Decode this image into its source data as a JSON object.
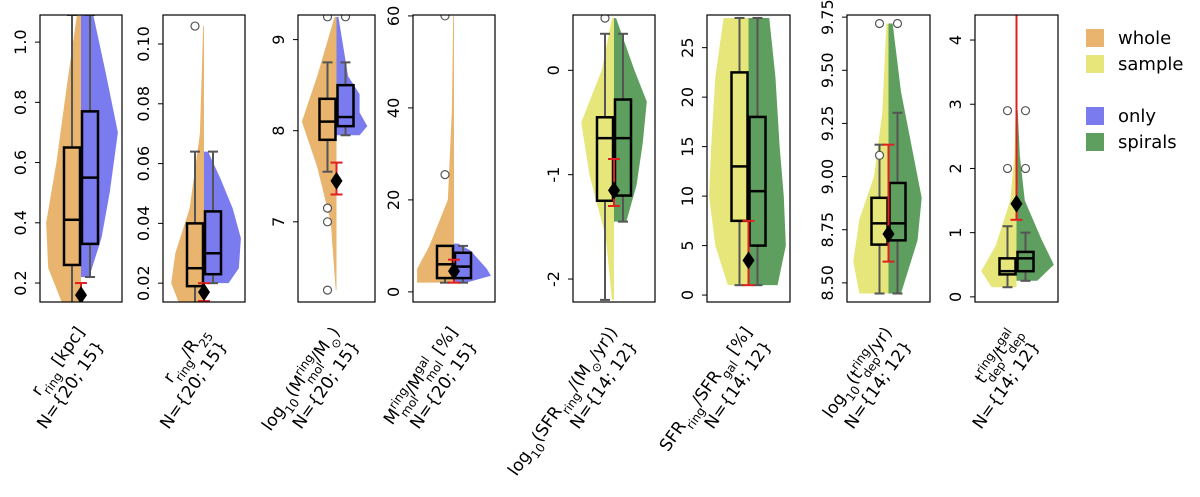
{
  "legend": [
    {
      "label": "whole",
      "color": "#e8b46e"
    },
    {
      "label": "sample",
      "color": "#e6e67a"
    },
    {
      "label": "only",
      "color": "#7b7bf0"
    },
    {
      "label": "spirals",
      "color": "#5e9e5e"
    }
  ],
  "chart_data": [
    {
      "type": "split-violin",
      "ylim": [
        0.137,
        1.09
      ],
      "yticks": [
        0.2,
        0.4,
        0.6,
        0.8,
        {
          "value": 1,
          "label": "1.0"
        }
      ],
      "xlabel": [
        {
          "text": "r"
        },
        {
          "text": "ring",
          "shift": "sub"
        },
        {
          "text": " [kpc]"
        }
      ],
      "n_label": "N={20; 15}",
      "series": [
        {
          "color": "#e8b46e",
          "box": {
            "whislo": 0.13,
            "q1": 0.26,
            "med": 0.41,
            "q3": 0.65,
            "whishi": 1.09
          },
          "fliers": [],
          "violin_y": [
            0.13,
            0.25,
            0.4,
            0.6,
            0.85,
            1.09
          ],
          "violin_w": [
            0.45,
            0.8,
            0.85,
            0.6,
            0.35,
            0.1
          ]
        },
        {
          "color": "#7b7bf0",
          "box": {
            "whislo": 0.22,
            "q1": 0.33,
            "med": 0.55,
            "q3": 0.77,
            "whishi": 1.09
          },
          "fliers": [],
          "violin_y": [
            0.22,
            0.35,
            0.5,
            0.7,
            0.9,
            1.09
          ],
          "violin_w": [
            0.2,
            0.5,
            0.7,
            0.9,
            0.6,
            0.3
          ]
        }
      ],
      "ring_value": {
        "value": 0.16,
        "low": 0.12,
        "high": 0.2
      }
    },
    {
      "type": "split-violin",
      "ylim": [
        0.0137,
        0.1097
      ],
      "yticks": [
        0.02,
        0.04,
        0.06,
        0.08,
        {
          "value": 0.1,
          "label": "0.10"
        }
      ],
      "xlabel": [
        {
          "text": "r"
        },
        {
          "text": "ring",
          "shift": "sub"
        },
        {
          "text": "/R"
        },
        {
          "text": "25",
          "shift": "sub"
        }
      ],
      "n_label": "N={20; 15}",
      "series": [
        {
          "color": "#e8b46e",
          "box": {
            "whislo": 0.013,
            "q1": 0.019,
            "med": 0.025,
            "q3": 0.04,
            "whishi": 0.064
          },
          "fliers": [
            0.106
          ],
          "violin_y": [
            0.013,
            0.02,
            0.03,
            0.045,
            0.07,
            0.106
          ],
          "violin_w": [
            0.6,
            0.8,
            0.7,
            0.35,
            0.1,
            0.02
          ]
        },
        {
          "color": "#7b7bf0",
          "box": {
            "whislo": 0.02,
            "q1": 0.023,
            "med": 0.03,
            "q3": 0.044,
            "whishi": 0.064
          },
          "fliers": [],
          "violin_y": [
            0.02,
            0.025,
            0.035,
            0.045,
            0.055,
            0.064
          ],
          "violin_w": [
            0.6,
            0.85,
            0.9,
            0.7,
            0.4,
            0.1
          ]
        }
      ],
      "ring_value": {
        "value": 0.017,
        "low": 0.014,
        "high": 0.02
      }
    },
    {
      "type": "split-violin",
      "ylim": [
        6.12,
        9.27
      ],
      "yticks": [
        7,
        8,
        9
      ],
      "xlabel": [
        {
          "text": "log"
        },
        {
          "text": "10",
          "shift": "sub"
        },
        {
          "text": "(M"
        },
        {
          "text": "ring",
          "shift": "sup"
        },
        {
          "text": "mol",
          "shift": "sub"
        },
        {
          "text": "/M"
        },
        {
          "text": "⊙",
          "shift": "sub"
        },
        {
          "text": ")"
        }
      ],
      "n_label": "N={20; 15}",
      "series": [
        {
          "color": "#e8b46e",
          "box": {
            "whislo": 7.55,
            "q1": 7.9,
            "med": 8.1,
            "q3": 8.35,
            "whishi": 8.75
          },
          "fliers": [
            9.25,
            7.15,
            7.0,
            6.25
          ],
          "violin_y": [
            6.25,
            7.0,
            7.6,
            8.1,
            8.6,
            9.25
          ],
          "violin_w": [
            0.02,
            0.15,
            0.5,
            0.9,
            0.5,
            0.05
          ]
        },
        {
          "color": "#7b7bf0",
          "box": {
            "whislo": 7.95,
            "q1": 8.05,
            "med": 8.15,
            "q3": 8.5,
            "whishi": 8.75
          },
          "fliers": [
            9.25
          ],
          "violin_y": [
            7.95,
            8.05,
            8.2,
            8.4,
            8.6,
            9.25
          ],
          "violin_w": [
            0.6,
            0.8,
            0.6,
            0.6,
            0.3,
            0.05
          ]
        }
      ],
      "ring_value": {
        "value": 7.45,
        "low": 7.3,
        "high": 7.65
      }
    },
    {
      "type": "split-violin",
      "ylim": [
        -2.2,
        60.2
      ],
      "yticks": [
        0,
        20,
        40,
        60
      ],
      "xlabel": [
        {
          "text": "M"
        },
        {
          "text": "ring",
          "shift": "sup"
        },
        {
          "text": "mol",
          "shift": "sub"
        },
        {
          "text": "/M"
        },
        {
          "text": "gal",
          "shift": "sup"
        },
        {
          "text": "mol",
          "shift": "sub"
        },
        {
          "text": " [%]"
        }
      ],
      "n_label": "N={20; 15}",
      "series": [
        {
          "color": "#e8b46e",
          "box": {
            "whislo": 2,
            "q1": 3,
            "med": 6,
            "q3": 10,
            "whishi": 10
          },
          "fliers": [
            25.5,
            60
          ],
          "violin_y": [
            2,
            5,
            10,
            20,
            40,
            60
          ],
          "violin_w": [
            0.9,
            0.9,
            0.6,
            0.15,
            0.05,
            0.02
          ]
        },
        {
          "color": "#7b7bf0",
          "box": {
            "whislo": 2,
            "q1": 3,
            "med": 5.5,
            "q3": 8.5,
            "whishi": 10
          },
          "fliers": [],
          "violin_y": [
            2,
            3.5,
            5,
            7,
            9,
            10.5
          ],
          "violin_w": [
            0.3,
            0.9,
            0.8,
            0.6,
            0.4,
            0.1
          ]
        }
      ],
      "ring_value": {
        "value": 4.5,
        "low": 2,
        "high": 7
      }
    },
    {
      "type": "split-violin",
      "ylim": [
        -2.22,
        0.53
      ],
      "yticks": [
        -2,
        -1,
        0
      ],
      "xlabel": [
        {
          "text": "log"
        },
        {
          "text": "10",
          "shift": "sub"
        },
        {
          "text": "(SFR"
        },
        {
          "text": "ring",
          "shift": "sub"
        },
        {
          "text": "/(M"
        },
        {
          "text": "⊙",
          "shift": "sub"
        },
        {
          "text": "/yr))"
        }
      ],
      "n_label": "N={14; 12}",
      "series": [
        {
          "color": "#e6e67a",
          "box": {
            "whislo": -2.2,
            "q1": -1.25,
            "med": -0.65,
            "q3": -0.45,
            "whishi": 0.35
          },
          "fliers": [
            0.5
          ],
          "violin_y": [
            -2.2,
            -1.6,
            -1.0,
            -0.5,
            0,
            0.5
          ],
          "violin_w": [
            0.05,
            0.2,
            0.6,
            0.8,
            0.3,
            0.05
          ]
        },
        {
          "color": "#5e9e5e",
          "box": {
            "whislo": -1.45,
            "q1": -1.2,
            "med": -0.65,
            "q3": -0.28,
            "whishi": 0.35
          },
          "fliers": [],
          "violin_y": [
            -1.45,
            -1.1,
            -0.7,
            -0.3,
            0,
            0.5
          ],
          "violin_w": [
            0.3,
            0.55,
            0.7,
            0.8,
            0.5,
            0.05
          ]
        }
      ],
      "ring_value": {
        "value": -1.15,
        "low": -1.3,
        "high": -0.85
      }
    },
    {
      "type": "split-violin",
      "ylim": [
        -0.7,
        28.3
      ],
      "yticks": [
        0,
        5,
        10,
        15,
        20,
        25
      ],
      "xlabel": [
        {
          "text": "SFR"
        },
        {
          "text": "ring",
          "shift": "sub"
        },
        {
          "text": "/SFR"
        },
        {
          "text": "gal",
          "shift": "sub"
        },
        {
          "text": " [%]"
        }
      ],
      "n_label": "N={14; 12}",
      "series": [
        {
          "color": "#e6e67a",
          "box": {
            "whislo": 1,
            "q1": 7.5,
            "med": 13,
            "q3": 22.5,
            "whishi": 28
          },
          "fliers": [],
          "violin_y": [
            1,
            5,
            10,
            15,
            22,
            28
          ],
          "violin_w": [
            0.5,
            0.8,
            0.95,
            0.9,
            0.8,
            0.6
          ]
        },
        {
          "color": "#5e9e5e",
          "box": {
            "whislo": 1,
            "q1": 5,
            "med": 10.5,
            "q3": 18,
            "whishi": 28
          },
          "fliers": [],
          "violin_y": [
            1,
            5,
            10,
            15,
            22,
            28
          ],
          "violin_w": [
            0.7,
            0.9,
            0.85,
            0.75,
            0.65,
            0.5
          ]
        }
      ],
      "ring_value": {
        "value": 3.5,
        "low": 1,
        "high": 7.5
      }
    },
    {
      "type": "split-violin",
      "ylim": [
        8.41,
        9.76
      ],
      "yticks": [
        {
          "value": 8.5,
          "label": "8.50"
        },
        {
          "value": 8.75,
          "label": "8.75"
        },
        {
          "value": 9,
          "label": "9.00"
        },
        {
          "value": 9.25,
          "label": "9.25"
        },
        {
          "value": 9.5,
          "label": "9.50"
        },
        {
          "value": 9.75,
          "label": "9.75"
        }
      ],
      "xlabel": [
        {
          "text": "log"
        },
        {
          "text": "10",
          "shift": "sub"
        },
        {
          "text": "(t"
        },
        {
          "text": "ring",
          "shift": "sup"
        },
        {
          "text": "dep",
          "shift": "sub"
        },
        {
          "text": "/yr)"
        }
      ],
      "n_label": "N={14; 12}",
      "series": [
        {
          "color": "#e6e67a",
          "box": {
            "whislo": 8.45,
            "q1": 8.68,
            "med": 8.78,
            "q3": 8.9,
            "whishi": 9.15
          },
          "fliers": [
            9.72,
            9.1
          ],
          "violin_y": [
            8.45,
            8.6,
            8.8,
            9.0,
            9.3,
            9.72
          ],
          "violin_w": [
            0.7,
            0.85,
            0.7,
            0.35,
            0.15,
            0.05
          ]
        },
        {
          "color": "#5e9e5e",
          "box": {
            "whislo": 8.45,
            "q1": 8.7,
            "med": 8.78,
            "q3": 8.97,
            "whishi": 9.3
          },
          "fliers": [
            9.72
          ],
          "violin_y": [
            8.45,
            8.7,
            8.9,
            9.1,
            9.4,
            9.72
          ],
          "violin_w": [
            0.3,
            0.7,
            0.8,
            0.6,
            0.3,
            0.1
          ]
        }
      ],
      "ring_value": {
        "value": 8.73,
        "low": 8.6,
        "high": 9.15
      }
    },
    {
      "type": "split-violin",
      "ylim": [
        -0.08,
        4.39
      ],
      "yticks": [
        0,
        1,
        2,
        3,
        4
      ],
      "xlabel": [
        {
          "text": "t"
        },
        {
          "text": "ring",
          "shift": "sup"
        },
        {
          "text": "dep",
          "shift": "sub"
        },
        {
          "text": "/t"
        },
        {
          "text": "gal",
          "shift": "sup"
        },
        {
          "text": "dep",
          "shift": "sub"
        }
      ],
      "n_label": "N={14; 12}",
      "series": [
        {
          "color": "#e6e67a",
          "box": {
            "whislo": 0.15,
            "q1": 0.35,
            "med": 0.4,
            "q3": 0.6,
            "whishi": 1.1
          },
          "fliers": [
            2.0,
            2.9
          ],
          "violin_y": [
            0.15,
            0.4,
            0.8,
            1.5,
            2.2,
            2.9
          ],
          "violin_w": [
            0.6,
            0.85,
            0.5,
            0.15,
            0.05,
            0.02
          ]
        },
        {
          "color": "#5e9e5e",
          "box": {
            "whislo": 0.25,
            "q1": 0.4,
            "med": 0.6,
            "q3": 0.7,
            "whishi": 1.0
          },
          "fliers": [
            2.0,
            2.9
          ],
          "violin_y": [
            0.25,
            0.5,
            0.9,
            1.5,
            2.2,
            2.9
          ],
          "violin_w": [
            0.5,
            0.9,
            0.6,
            0.2,
            0.08,
            0.03
          ]
        }
      ],
      "ring_value": {
        "value": 1.45,
        "low": 1.2,
        "high": 4.4
      }
    }
  ]
}
